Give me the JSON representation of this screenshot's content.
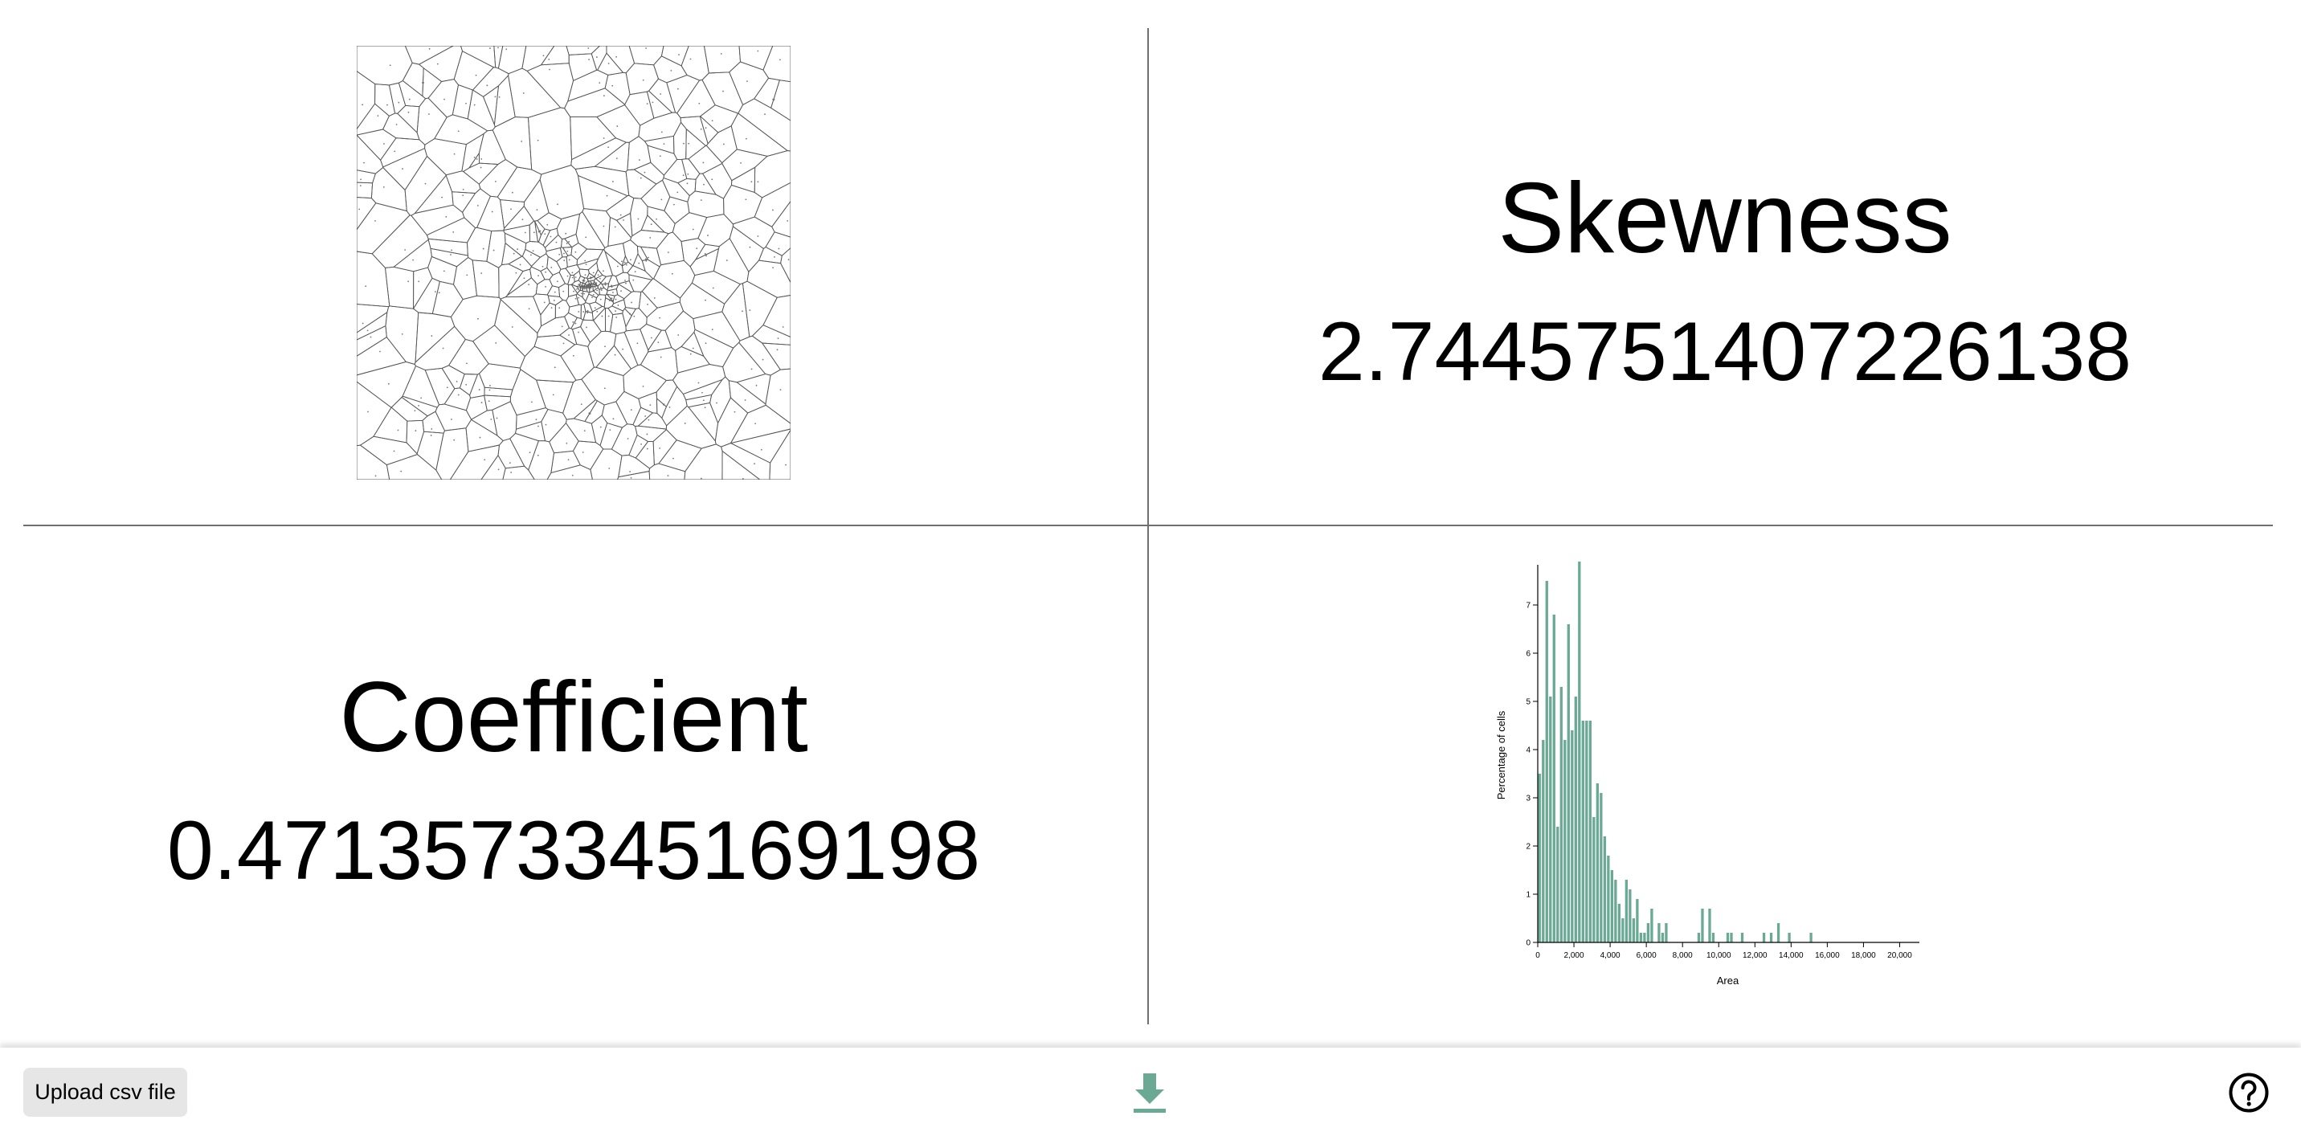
{
  "skewness": {
    "title": "Skewness",
    "value": "2.7445751407226138"
  },
  "coefficient": {
    "title": "Coefficient",
    "value": "0.4713573345169198"
  },
  "footer": {
    "upload_label": "Upload csv file",
    "download_icon": "download-arrow-icon",
    "help_icon": "question-circle-icon",
    "accent_color": "#6aa994"
  },
  "voronoi": {
    "stroke_color": "#555555"
  },
  "chart_data": {
    "type": "bar",
    "xlabel": "Area",
    "ylabel": "Percentage of cells",
    "xlim": [
      0,
      21000
    ],
    "ylim": [
      0,
      7.8
    ],
    "xticks": [
      0,
      2000,
      4000,
      6000,
      8000,
      10000,
      12000,
      14000,
      16000,
      18000,
      20000
    ],
    "xtick_labels": [
      "0",
      "2,000",
      "4,000",
      "6,000",
      "8,000",
      "10,000",
      "12,000",
      "14,000",
      "16,000",
      "18,000",
      "20,000"
    ],
    "yticks": [
      0,
      1,
      2,
      3,
      4,
      5,
      6,
      7
    ],
    "bin_width": 200,
    "color": "#6aa994",
    "bins": [
      [
        0,
        3.5
      ],
      [
        200,
        4.2
      ],
      [
        400,
        7.5
      ],
      [
        600,
        5.1
      ],
      [
        800,
        6.8
      ],
      [
        1000,
        2.4
      ],
      [
        1200,
        5.3
      ],
      [
        1400,
        4.2
      ],
      [
        1600,
        6.6
      ],
      [
        1800,
        4.4
      ],
      [
        2000,
        5.1
      ],
      [
        2200,
        7.9
      ],
      [
        2400,
        4.6
      ],
      [
        2600,
        4.6
      ],
      [
        2800,
        4.6
      ],
      [
        3000,
        2.6
      ],
      [
        3200,
        3.3
      ],
      [
        3400,
        3.1
      ],
      [
        3600,
        2.2
      ],
      [
        3800,
        1.8
      ],
      [
        4000,
        1.5
      ],
      [
        4200,
        1.3
      ],
      [
        4400,
        0.8
      ],
      [
        4600,
        0.5
      ],
      [
        4800,
        1.3
      ],
      [
        5000,
        1.1
      ],
      [
        5200,
        0.5
      ],
      [
        5400,
        0.9
      ],
      [
        5600,
        0.2
      ],
      [
        5800,
        0.2
      ],
      [
        6000,
        0.4
      ],
      [
        6200,
        0.7
      ],
      [
        6600,
        0.4
      ],
      [
        6800,
        0.2
      ],
      [
        7000,
        0.4
      ],
      [
        8800,
        0.2
      ],
      [
        9000,
        0.7
      ],
      [
        9400,
        0.7
      ],
      [
        9600,
        0.2
      ],
      [
        10400,
        0.2
      ],
      [
        10600,
        0.2
      ],
      [
        11200,
        0.2
      ],
      [
        12400,
        0.2
      ],
      [
        12800,
        0.2
      ],
      [
        13200,
        0.4
      ],
      [
        13800,
        0.2
      ],
      [
        15000,
        0.2
      ]
    ]
  }
}
